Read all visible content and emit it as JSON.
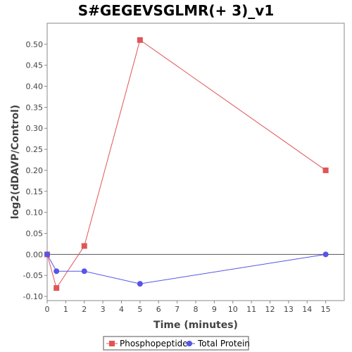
{
  "chart_data": {
    "type": "line",
    "title": "S#GEGEVSGLMR(+ 3)_v1",
    "xlabel": "Time (minutes)",
    "ylabel": "log2(dDAVP/Control)",
    "xlim": [
      0,
      16
    ],
    "ylim": [
      -0.11,
      0.55
    ],
    "x_ticks": [
      0,
      1,
      2,
      3,
      4,
      5,
      6,
      7,
      8,
      9,
      10,
      11,
      12,
      13,
      14,
      15
    ],
    "y_ticks": [
      -0.1,
      -0.05,
      0.0,
      0.05,
      0.1,
      0.15,
      0.2,
      0.25,
      0.3,
      0.35,
      0.4,
      0.45,
      0.5
    ],
    "y_tick_labels": [
      "-0.10",
      "-0.05",
      "0.00",
      "0.05",
      "0.10",
      "0.15",
      "0.20",
      "0.25",
      "0.30",
      "0.35",
      "0.40",
      "0.45",
      "0.50"
    ],
    "zero_line": true,
    "grid": false,
    "legend_position": "bottom",
    "series": [
      {
        "name": "Phosphopeptide",
        "color": "#e05555",
        "marker": "square",
        "x": [
          0,
          0.5,
          2,
          5,
          15
        ],
        "y": [
          0.0,
          -0.08,
          0.02,
          0.51,
          0.2
        ]
      },
      {
        "name": "Total Protein",
        "color": "#5555e8",
        "marker": "circle",
        "x": [
          0,
          0.5,
          2,
          5,
          15
        ],
        "y": [
          0.0,
          -0.04,
          -0.04,
          -0.07,
          0.0
        ]
      }
    ]
  }
}
